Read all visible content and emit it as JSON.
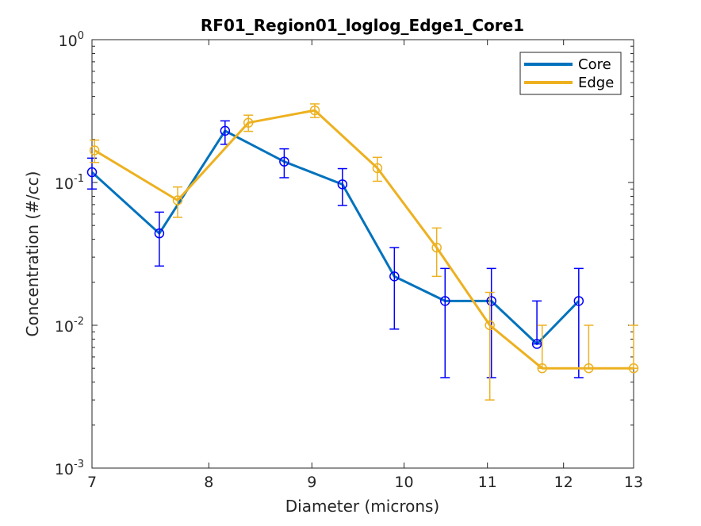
{
  "chart_data": {
    "type": "line",
    "title": "RF01_Region01_loglog_Edge1_Core1",
    "xlabel": "Diameter (microns)",
    "ylabel": "Concentration (#/cc)",
    "xscale": "log",
    "yscale": "log",
    "xlim": [
      7,
      13
    ],
    "ylim": [
      0.001,
      1
    ],
    "xticks": [
      7,
      8,
      9,
      10,
      11,
      12,
      13
    ],
    "xtick_labels": [
      "7",
      "8",
      "9",
      "10",
      "11",
      "12",
      "13"
    ],
    "yticks": [
      0.001,
      0.01,
      0.1,
      1
    ],
    "ytick_labels": [
      {
        "base": "10",
        "exp": "-3"
      },
      {
        "base": "10",
        "exp": "-2"
      },
      {
        "base": "10",
        "exp": "-1"
      },
      {
        "base": "10",
        "exp": "0"
      }
    ],
    "legend": {
      "location": "top-right",
      "entries": [
        "Core",
        "Edge"
      ]
    },
    "series": [
      {
        "name": "Core",
        "line_color": "#0072BD",
        "marker_color": "#0000FF",
        "x": [
          7.0,
          7.56,
          8.15,
          8.72,
          9.32,
          9.89,
          10.48,
          11.05,
          11.64,
          12.21
        ],
        "y": [
          0.118,
          0.044,
          0.23,
          0.14,
          0.097,
          0.022,
          0.0148,
          0.0148,
          0.0074,
          0.0148
        ],
        "err_low": [
          0.09,
          0.026,
          0.185,
          0.108,
          0.069,
          0.0094,
          0.0043,
          0.0043,
          0.0074,
          0.0043
        ],
        "err_high": [
          0.148,
          0.062,
          0.27,
          0.172,
          0.125,
          0.035,
          0.025,
          0.025,
          0.0148,
          0.025
        ]
      },
      {
        "name": "Edge",
        "line_color": "#EDB120",
        "marker_color": "#EDB120",
        "x": [
          7.02,
          7.72,
          8.37,
          9.03,
          9.7,
          10.38,
          11.03,
          11.71,
          12.35,
          13.0
        ],
        "y": [
          0.168,
          0.075,
          0.262,
          0.32,
          0.126,
          0.035,
          0.01,
          0.005,
          0.005,
          0.005
        ],
        "err_low": [
          0.138,
          0.057,
          0.228,
          0.285,
          0.102,
          0.022,
          0.003,
          0.005,
          0.005,
          0.005
        ],
        "err_high": [
          0.198,
          0.093,
          0.296,
          0.355,
          0.15,
          0.048,
          0.017,
          0.01,
          0.01,
          0.01
        ]
      }
    ]
  }
}
